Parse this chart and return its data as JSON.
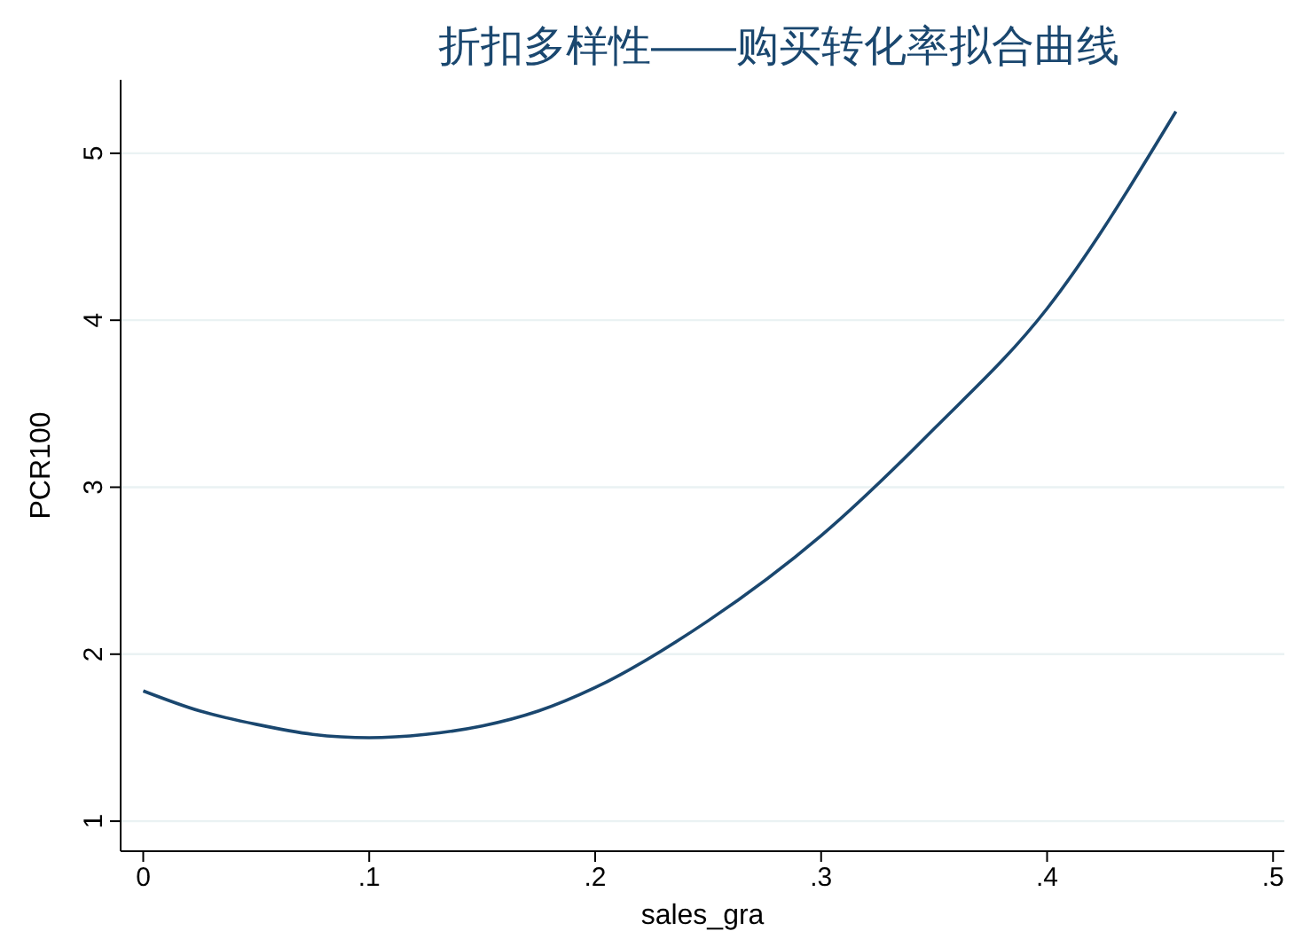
{
  "chart_data": {
    "type": "line",
    "title": "折扣多样性——购买转化率拟合曲线",
    "xlabel": "sales_gra",
    "ylabel": "PCR100",
    "x": [
      0,
      0.025,
      0.05,
      0.075,
      0.1,
      0.125,
      0.15,
      0.175,
      0.2,
      0.25,
      0.3,
      0.35,
      0.4,
      0.457
    ],
    "series": [
      {
        "color": "#1a476f",
        "values": [
          1.78,
          1.66,
          1.58,
          1.52,
          1.5,
          1.52,
          1.57,
          1.66,
          1.8,
          2.2,
          2.71,
          3.35,
          4.07,
          5.25
        ]
      }
    ],
    "xlim": [
      -0.01,
      0.505
    ],
    "xticks": [
      {
        "value": 0,
        "label": "0"
      },
      {
        "value": 0.1,
        "label": ".1"
      },
      {
        "value": 0.2,
        "label": ".2"
      },
      {
        "value": 0.3,
        "label": ".3"
      },
      {
        "value": 0.4,
        "label": ".4"
      },
      {
        "value": 0.5,
        "label": ".5"
      }
    ],
    "ylim": [
      0.82,
      5.44
    ],
    "yticks": [
      1,
      2,
      3,
      4,
      5
    ],
    "grid": "y",
    "marker": "none",
    "line_style": "solid"
  }
}
